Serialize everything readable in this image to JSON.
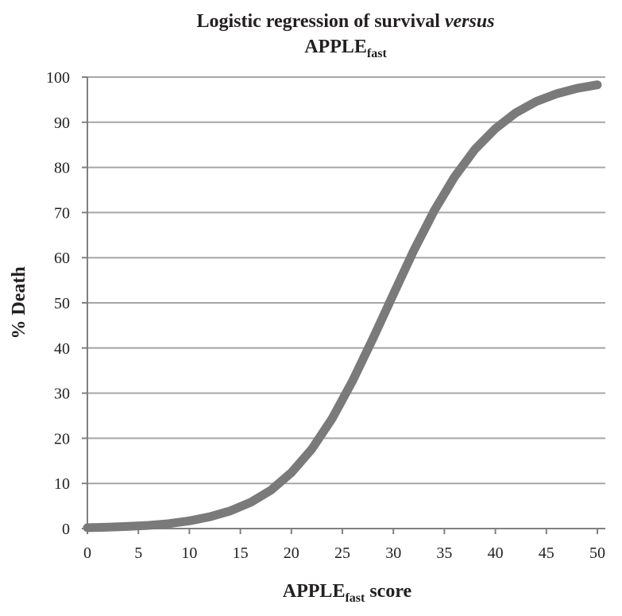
{
  "colors": {
    "curve": "#7a7a7a",
    "grid": "#a6a6a6",
    "text": "#231f20"
  },
  "chart_data": {
    "type": "line",
    "title": {
      "line1_main": "Logistic regression of survival ",
      "line1_italic": "versus",
      "line2_main": "APPLE",
      "line2_sub": "fast"
    },
    "xlabel": {
      "main": "APPLE",
      "sub": "fast",
      "suffix": " score"
    },
    "ylabel": "% Death",
    "xlim": [
      0,
      50
    ],
    "ylim": [
      0,
      100
    ],
    "xticks": [
      "0",
      "5",
      "10",
      "15",
      "20",
      "25",
      "30",
      "35",
      "40",
      "45",
      "50"
    ],
    "yticks": [
      "0",
      "10",
      "20",
      "30",
      "40",
      "50",
      "60",
      "70",
      "80",
      "90",
      "100"
    ],
    "grid": true,
    "legend": "none",
    "series": [
      {
        "x": [
          0,
          2,
          4,
          6,
          8,
          10,
          12,
          14,
          16,
          18,
          20,
          22,
          24,
          26,
          28,
          30,
          32,
          34,
          36,
          38,
          40,
          42,
          44,
          46,
          48,
          50
        ],
        "y": [
          0.2,
          0.3,
          0.5,
          0.7,
          1.1,
          1.7,
          2.6,
          3.9,
          5.8,
          8.5,
          12.4,
          17.6,
          24.4,
          32.7,
          42.1,
          51.9,
          61.6,
          70.4,
          77.9,
          84.0,
          88.6,
          92.1,
          94.6,
          96.3,
          97.5,
          98.3
        ]
      }
    ]
  }
}
